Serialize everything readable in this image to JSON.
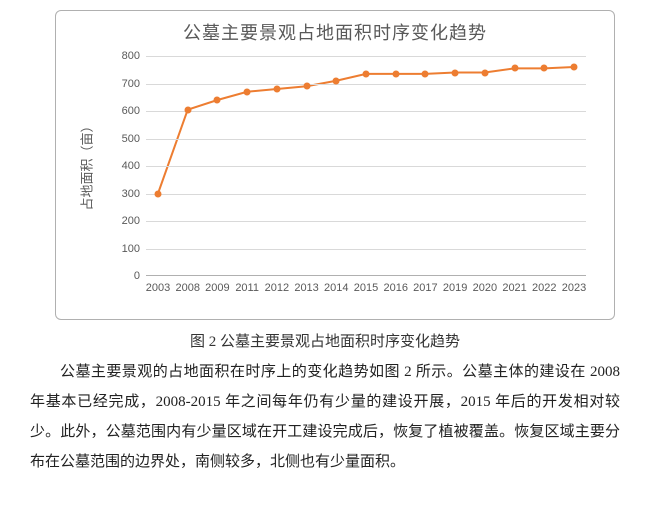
{
  "chart": {
    "type": "line",
    "title": "公墓主要景观占地面积时序变化趋势",
    "title_fontsize": 18,
    "title_color": "#595959",
    "ylabel": "占地面积（亩）",
    "ylabel_fontsize": 13,
    "ylabel_color": "#595959",
    "categories": [
      "2003",
      "2008",
      "2009",
      "2011",
      "2012",
      "2013",
      "2014",
      "2015",
      "2016",
      "2017",
      "2019",
      "2020",
      "2021",
      "2022",
      "2023"
    ],
    "values": [
      300,
      605,
      640,
      670,
      680,
      690,
      710,
      735,
      735,
      735,
      740,
      740,
      755,
      755,
      760
    ],
    "line_color": "#ed7d31",
    "marker_color": "#ed7d31",
    "line_width": 2,
    "marker_size": 7,
    "ylim": [
      0,
      800
    ],
    "ytick_step": 100,
    "grid_color": "#d9d9d9",
    "axis_color": "#b0b0b0",
    "tick_label_color": "#595959",
    "tick_label_fontsize": 11,
    "background_color": "#ffffff",
    "border_color": "#b0b0b0"
  },
  "caption": "图 2  公墓主要景观占地面积时序变化趋势",
  "paragraph": "公墓主要景观的占地面积在时序上的变化趋势如图 2 所示。公墓主体的建设在 2008 年基本已经完成，2008-2015 年之间每年仍有少量的建设开展，2015 年后的开发相对较少。此外，公墓范围内有少量区域在开工建设完成后，恢复了植被覆盖。恢复区域主要分布在公墓范围的边界处，南侧较多，北侧也有少量面积。"
}
